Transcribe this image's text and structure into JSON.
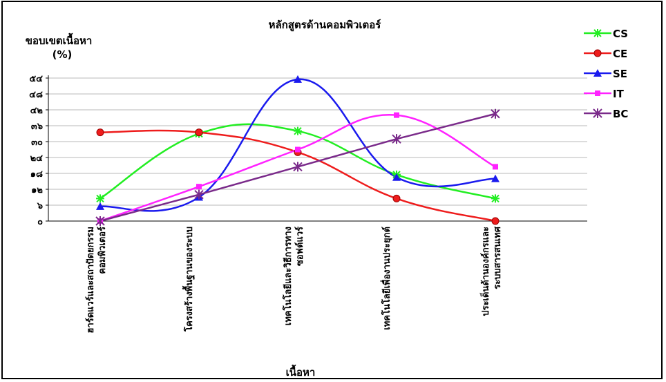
{
  "chart_data": {
    "type": "line",
    "title": "หลักสูตรด้านคอมพิวเตอร์",
    "ylabel_line1": "ขอบเขตเนื้อหา",
    "ylabel_line2": "(%)",
    "xlabel": "เนื้อหา",
    "y_ticks": [
      "๐",
      "๖",
      "๑๒",
      "๑๘",
      "๒๔",
      "๓๐",
      "๓๖",
      "๔๒",
      "๔๘",
      "๕๔"
    ],
    "ylim": [
      0,
      54
    ],
    "grid": true,
    "legend_position": "right",
    "categories": [
      [
        "ฮาร์ดแวร์และสถาปัตยกรรม",
        "คอมพิวเตอร์"
      ],
      [
        "โครงสร้างพื้นฐานของระบบ"
      ],
      [
        "เทคโนโลยีและวิธีการทาง",
        "ซอฟต์แวร์"
      ],
      [
        "เทคโนโลยีเพื่องานประยุกต์"
      ],
      [
        "ประเด็นด้านองค์กรและ",
        "ระบบสารสนเทศ"
      ]
    ],
    "series": [
      {
        "name": "CS",
        "color": "#22ee22",
        "marker": "star",
        "values": [
          8.5,
          33,
          34,
          17.5,
          8.5
        ]
      },
      {
        "name": "CE",
        "color": "#ee1c1c",
        "marker": "circle",
        "values": [
          33.5,
          33.5,
          26,
          8.5,
          0
        ]
      },
      {
        "name": "SE",
        "color": "#1a1aee",
        "marker": "triangle",
        "values": [
          5.5,
          9,
          53.5,
          16.5,
          16
        ]
      },
      {
        "name": "IT",
        "color": "#ff22ff",
        "marker": "square",
        "values": [
          0,
          13,
          27,
          40,
          20.5
        ]
      },
      {
        "name": "BC",
        "color": "#7a2a8a",
        "marker": "asterisk",
        "values": [
          0,
          10,
          20.5,
          31,
          40.5
        ]
      }
    ]
  }
}
